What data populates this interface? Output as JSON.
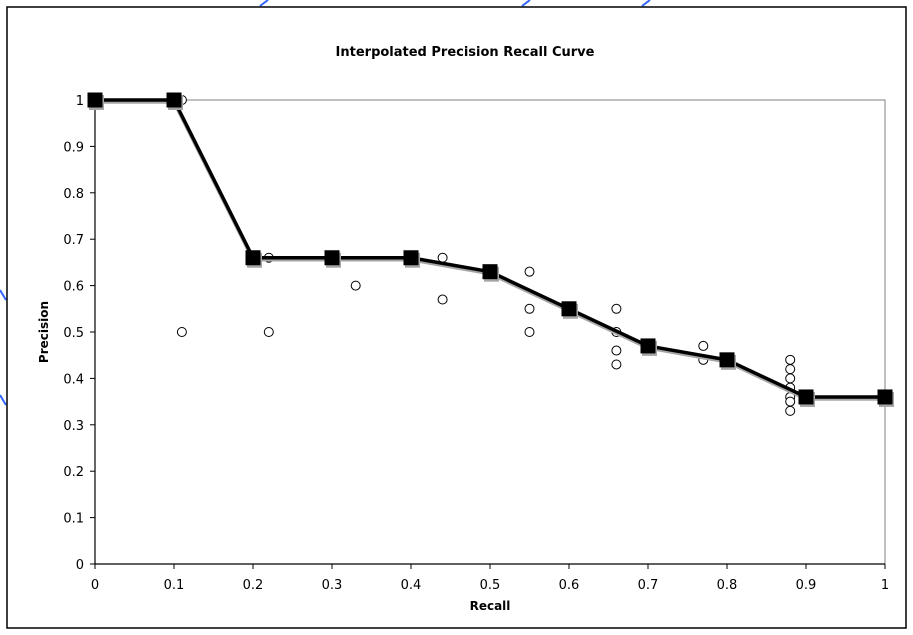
{
  "colors": {
    "background": "#ffffff",
    "border": "#000000",
    "plot_border": "#808080",
    "line": "#000000",
    "marker_fill": "#000000",
    "marker_shadow": "#a6a6a6",
    "point_stroke": "#000000",
    "point_fill": "#ffffff",
    "corner_marks": "#3366ff"
  },
  "chart_data": {
    "type": "scatter",
    "title": "Interpolated Precision Recall Curve",
    "xlabel": "Recall",
    "ylabel": "Precision",
    "xlim": [
      0,
      1
    ],
    "ylim": [
      0,
      1
    ],
    "x_ticks": [
      0,
      0.1,
      0.2,
      0.3,
      0.4,
      0.5,
      0.6,
      0.7,
      0.8,
      0.9,
      1
    ],
    "y_ticks": [
      0,
      0.1,
      0.2,
      0.3,
      0.4,
      0.5,
      0.6,
      0.7,
      0.8,
      0.9,
      1
    ],
    "x_tick_labels": [
      "0",
      "0.1",
      "0.2",
      "0.3",
      "0.4",
      "0.5",
      "0.6",
      "0.7",
      "0.8",
      "0.9",
      "1"
    ],
    "y_tick_labels": [
      "0",
      "0.1",
      "0.2",
      "0.3",
      "0.4",
      "0.5",
      "0.6",
      "0.7",
      "0.8",
      "0.9",
      "1"
    ],
    "grid": false,
    "legend": "none",
    "series": [
      {
        "style": "points",
        "marker": "open-circle",
        "x": [
          0.11,
          0.11,
          0.22,
          0.22,
          0.33,
          0.44,
          0.44,
          0.55,
          0.55,
          0.55,
          0.66,
          0.66,
          0.66,
          0.66,
          0.77,
          0.77,
          0.88,
          0.88,
          0.88,
          0.88,
          0.88,
          0.88,
          0.88
        ],
        "y": [
          1.0,
          0.5,
          0.66,
          0.5,
          0.6,
          0.66,
          0.57,
          0.63,
          0.55,
          0.5,
          0.55,
          0.5,
          0.46,
          0.43,
          0.47,
          0.44,
          0.44,
          0.42,
          0.4,
          0.38,
          0.36,
          0.35,
          0.33
        ]
      },
      {
        "style": "line-with-markers",
        "marker": "filled-square",
        "x": [
          0,
          0.1,
          0.2,
          0.3,
          0.4,
          0.5,
          0.6,
          0.7,
          0.8,
          0.9,
          1.0
        ],
        "y": [
          1.0,
          1.0,
          0.66,
          0.66,
          0.66,
          0.63,
          0.55,
          0.47,
          0.44,
          0.36,
          0.36
        ]
      }
    ]
  }
}
